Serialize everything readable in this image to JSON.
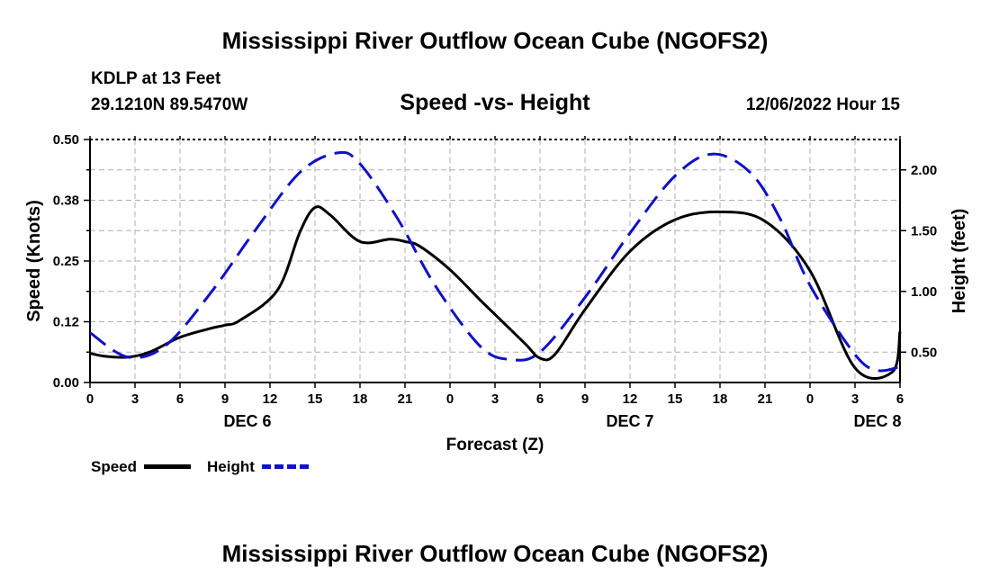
{
  "header": {
    "title": "Mississippi River Outflow Ocean Cube (NGOFS2)",
    "station": "KDLP at 13 Feet",
    "location": "29.1210N  89.5470W",
    "subtitle": "Speed -vs- Height",
    "datetime": "12/06/2022 Hour 15"
  },
  "footer": {
    "title": "Mississippi River Outflow Ocean Cube (NGOFS2)"
  },
  "legend": {
    "speed_label": "Speed",
    "height_label": "Height"
  },
  "colors": {
    "speed": "#000000",
    "height": "#1010c8",
    "grid": "#b0b0b0"
  },
  "chart_data": {
    "type": "line",
    "title": "Speed -vs- Height",
    "xlabel": "Forecast (Z)",
    "ylabel": "Speed (Knots)",
    "y2label": "Height (feet)",
    "x_range": [
      0,
      54
    ],
    "ylim": [
      0,
      0.5
    ],
    "y2lim": [
      0.25,
      2.25
    ],
    "x_ticks": [
      0,
      3,
      6,
      9,
      12,
      15,
      18,
      21,
      24,
      27,
      30,
      33,
      36,
      39,
      42,
      45,
      48,
      51,
      54
    ],
    "x_tick_labels": [
      "0",
      "3",
      "6",
      "9",
      "12",
      "15",
      "18",
      "21",
      "0",
      "3",
      "6",
      "9",
      "12",
      "15",
      "18",
      "21",
      "0",
      "3",
      "6"
    ],
    "y_ticks": [
      0,
      0.125,
      0.25,
      0.375,
      0.5
    ],
    "y_tick_labels": [
      "0.00",
      "0.12",
      "0.25",
      "0.38",
      "0.50"
    ],
    "y2_ticks": [
      0.5,
      1.0,
      1.5,
      2.0
    ],
    "y2_tick_labels": [
      "0.50",
      "1.00",
      "1.50",
      "2.00"
    ],
    "day_labels": [
      {
        "x": 10.5,
        "label": "DEC 6"
      },
      {
        "x": 36,
        "label": "DEC 7"
      },
      {
        "x": 52.5,
        "label": "DEC 8"
      }
    ],
    "series": [
      {
        "name": "Speed",
        "axis": "left",
        "style": "solid",
        "x": [
          0,
          1,
          2.5,
          4,
          6,
          8,
          9,
          10,
          12.5,
          14,
          15,
          16,
          18,
          20,
          21,
          22,
          24,
          26,
          27,
          29,
          30,
          31,
          33,
          36,
          39,
          42,
          45,
          48,
          51,
          53.5,
          54
        ],
        "values": [
          0.06,
          0.054,
          0.052,
          0.063,
          0.093,
          0.111,
          0.118,
          0.128,
          0.19,
          0.31,
          0.36,
          0.345,
          0.29,
          0.295,
          0.29,
          0.28,
          0.232,
          0.17,
          0.14,
          0.08,
          0.05,
          0.058,
          0.15,
          0.27,
          0.335,
          0.351,
          0.332,
          0.23,
          0.03,
          0.022,
          0.105
        ]
      },
      {
        "name": "Height",
        "axis": "right",
        "style": "dashed",
        "x": [
          0,
          2.5,
          5,
          8,
          11,
          14,
          16.5,
          18,
          20.5,
          23,
          26,
          28,
          30,
          33,
          36,
          39,
          41.5,
          44,
          46,
          48,
          51,
          52.5,
          54
        ],
        "values": [
          0.66,
          0.46,
          0.55,
          0.98,
          1.5,
          1.98,
          2.14,
          2.05,
          1.6,
          1.05,
          0.55,
          0.44,
          0.5,
          0.95,
          1.48,
          1.95,
          2.13,
          1.98,
          1.6,
          1.05,
          0.48,
          0.35,
          0.38
        ]
      }
    ]
  }
}
